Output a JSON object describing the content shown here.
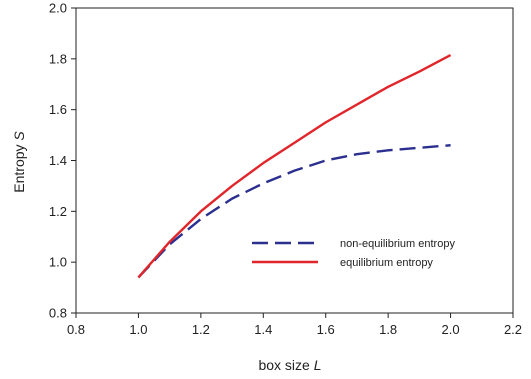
{
  "chart_data": {
    "type": "line",
    "xlabel": "box size",
    "xlabel_var": "L",
    "ylabel": "Entropy",
    "ylabel_var": "S",
    "xlim": [
      0.8,
      2.2
    ],
    "ylim": [
      0.8,
      2.0
    ],
    "xticks": [
      "0.8",
      "1.0",
      "1.2",
      "1.4",
      "1.6",
      "1.8",
      "2.0",
      "2.2"
    ],
    "yticks": [
      "0.8",
      "1.0",
      "1.2",
      "1.4",
      "1.6",
      "1.8",
      "2.0"
    ],
    "grid": false,
    "legend_position": "lower-right",
    "series": [
      {
        "name": "non-equilibrium entropy",
        "color": "#2b2f8f",
        "style": "dashed",
        "x": [
          1.0,
          1.1,
          1.2,
          1.3,
          1.4,
          1.5,
          1.6,
          1.7,
          1.8,
          1.9,
          2.0
        ],
        "y": [
          0.94,
          1.07,
          1.17,
          1.25,
          1.31,
          1.36,
          1.4,
          1.425,
          1.44,
          1.45,
          1.46
        ]
      },
      {
        "name": "equilibrium entropy",
        "color": "#e0262b",
        "style": "solid",
        "x": [
          1.0,
          1.1,
          1.2,
          1.3,
          1.4,
          1.5,
          1.6,
          1.7,
          1.8,
          1.9,
          2.0
        ],
        "y": [
          0.94,
          1.08,
          1.2,
          1.3,
          1.39,
          1.47,
          1.55,
          1.62,
          1.69,
          1.75,
          1.815
        ]
      }
    ]
  }
}
